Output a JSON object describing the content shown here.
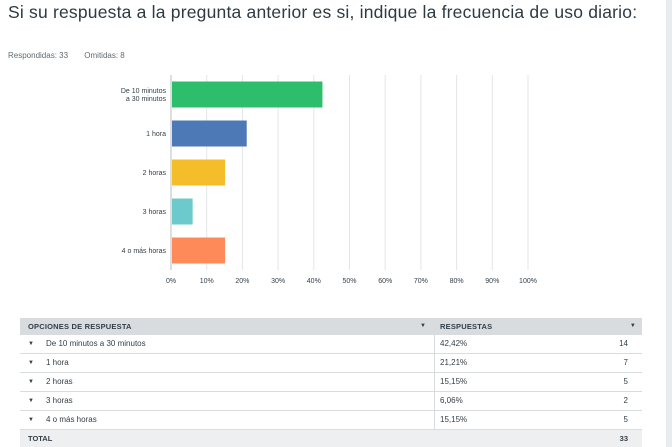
{
  "question": {
    "title": "Si su respuesta a la pregunta anterior es si, indique la frecuencia de uso diario:",
    "respondidas": "Respondidas: 33",
    "omitidas": "Omitidas: 8"
  },
  "chart_data": {
    "type": "bar",
    "orientation": "horizontal",
    "categories": [
      "De 10 minutos a 30 minutos",
      "1 hora",
      "2 horas",
      "3 horas",
      "4 o más horas"
    ],
    "category_lines": [
      [
        "De 10 minutos",
        "a 30 minutos"
      ],
      [
        "1 hora"
      ],
      [
        "2 horas"
      ],
      [
        "3 horas"
      ],
      [
        "4 o más horas"
      ]
    ],
    "values": [
      42.42,
      21.21,
      15.15,
      6.06,
      15.15
    ],
    "colors": [
      "#2dbe6c",
      "#4e79b7",
      "#f6bd2b",
      "#6ccacc",
      "#fe8a5a"
    ],
    "xlim": [
      0,
      100
    ],
    "xticks": [
      "0%",
      "10%",
      "20%",
      "30%",
      "40%",
      "50%",
      "60%",
      "70%",
      "80%",
      "90%",
      "100%"
    ],
    "title": "",
    "xlabel": "",
    "ylabel": "",
    "grid": true
  },
  "table": {
    "col_option": "OPCIONES DE RESPUESTA",
    "col_responses": "RESPUESTAS",
    "rows": [
      {
        "label": "De 10 minutos a 30 minutos",
        "percent": "42,42%",
        "count": "14"
      },
      {
        "label": "1 hora",
        "percent": "21,21%",
        "count": "7"
      },
      {
        "label": "2 horas",
        "percent": "15,15%",
        "count": "5"
      },
      {
        "label": "3 horas",
        "percent": "6,06%",
        "count": "2"
      },
      {
        "label": "4 o más horas",
        "percent": "15,15%",
        "count": "5"
      }
    ],
    "total_label": "TOTAL",
    "total_count": "33"
  }
}
